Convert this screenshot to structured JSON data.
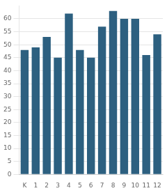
{
  "chart_data": {
    "type": "bar",
    "categories": [
      "K",
      "1",
      "2",
      "3",
      "4",
      "5",
      "6",
      "7",
      "8",
      "9",
      "10",
      "11",
      "12"
    ],
    "values": [
      48,
      49,
      53,
      45,
      62,
      48,
      45,
      57,
      63,
      60,
      60,
      46,
      54
    ],
    "color": "#2d6080",
    "ylim": [
      0,
      65
    ],
    "yticks": [
      0,
      5,
      10,
      15,
      20,
      25,
      30,
      35,
      40,
      45,
      50,
      55,
      60
    ],
    "grid": true
  }
}
